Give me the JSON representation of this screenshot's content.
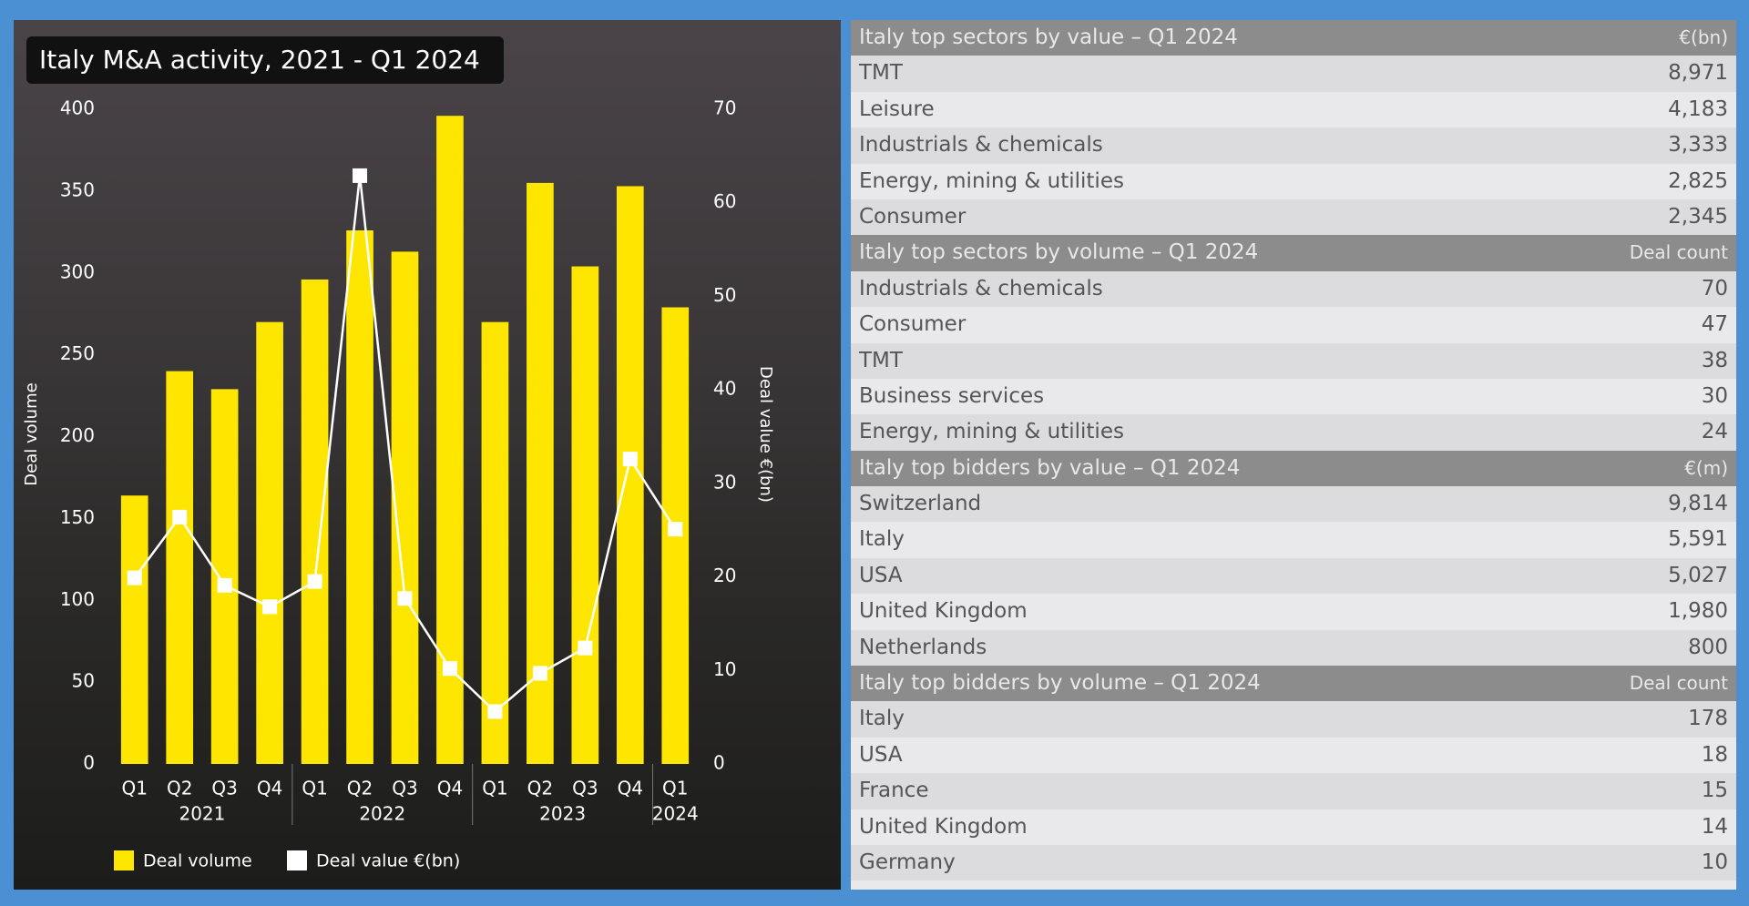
{
  "chart_data": {
    "type": "bar",
    "title": "Italy M&A activity, 2021 - Q1 2024",
    "categories": [
      "Q1",
      "Q2",
      "Q3",
      "Q4",
      "Q1",
      "Q2",
      "Q3",
      "Q4",
      "Q1",
      "Q2",
      "Q3",
      "Q4",
      "Q1"
    ],
    "years": [
      "2021",
      null,
      null,
      null,
      "2022",
      null,
      null,
      null,
      "2023",
      null,
      null,
      null,
      "2024"
    ],
    "y_label": "Deal volume",
    "y2_label": "Deal value €(bn)",
    "series": [
      {
        "name": "Deal volume",
        "color": "#ffe600",
        "type": "bar",
        "values": [
          164,
          240,
          229,
          270,
          296,
          326,
          313,
          396,
          270,
          355,
          304,
          353,
          279
        ]
      },
      {
        "name": "Deal value €(bn)",
        "color": "#ffffff",
        "type": "line",
        "axis": "y2",
        "values": [
          19.9,
          26.4,
          19.1,
          16.8,
          19.5,
          62.9,
          17.7,
          10.2,
          5.6,
          9.7,
          12.4,
          32.6,
          25.1
        ]
      }
    ],
    "ylim": [
      0,
      400
    ],
    "yticks": [
      0,
      50,
      100,
      150,
      200,
      250,
      300,
      350,
      400
    ],
    "y2lim": [
      0,
      70
    ],
    "y2ticks": [
      0,
      10,
      20,
      30,
      40,
      50,
      60,
      70
    ],
    "grid": false
  },
  "tables": [
    {
      "title": "Italy top sectors by value – Q1 2024",
      "unit": "€(bn)",
      "rows": [
        [
          "TMT",
          "8,971"
        ],
        [
          "Leisure",
          "4,183"
        ],
        [
          "Industrials & chemicals",
          "3,333"
        ],
        [
          "Energy, mining & utilities",
          "2,825"
        ],
        [
          "Consumer",
          "2,345"
        ]
      ]
    },
    {
      "title": "Italy top sectors by volume – Q1 2024",
      "unit": "Deal count",
      "rows": [
        [
          "Industrials & chemicals",
          "70"
        ],
        [
          "Consumer",
          "47"
        ],
        [
          "TMT",
          "38"
        ],
        [
          "Business services",
          "30"
        ],
        [
          "Energy, mining & utilities",
          "24"
        ]
      ]
    },
    {
      "title": "Italy top bidders by value – Q1 2024",
      "unit": "€(m)",
      "rows": [
        [
          "Switzerland",
          "9,814"
        ],
        [
          "Italy",
          "5,591"
        ],
        [
          "USA",
          "5,027"
        ],
        [
          "United Kingdom",
          "1,980"
        ],
        [
          "Netherlands",
          "800"
        ]
      ]
    },
    {
      "title": "Italy top bidders by volume – Q1 2024",
      "unit": "Deal count",
      "rows": [
        [
          "Italy",
          "178"
        ],
        [
          "USA",
          "18"
        ],
        [
          "France",
          "15"
        ],
        [
          "United Kingdom",
          "14"
        ],
        [
          "Germany",
          "10"
        ]
      ]
    }
  ]
}
